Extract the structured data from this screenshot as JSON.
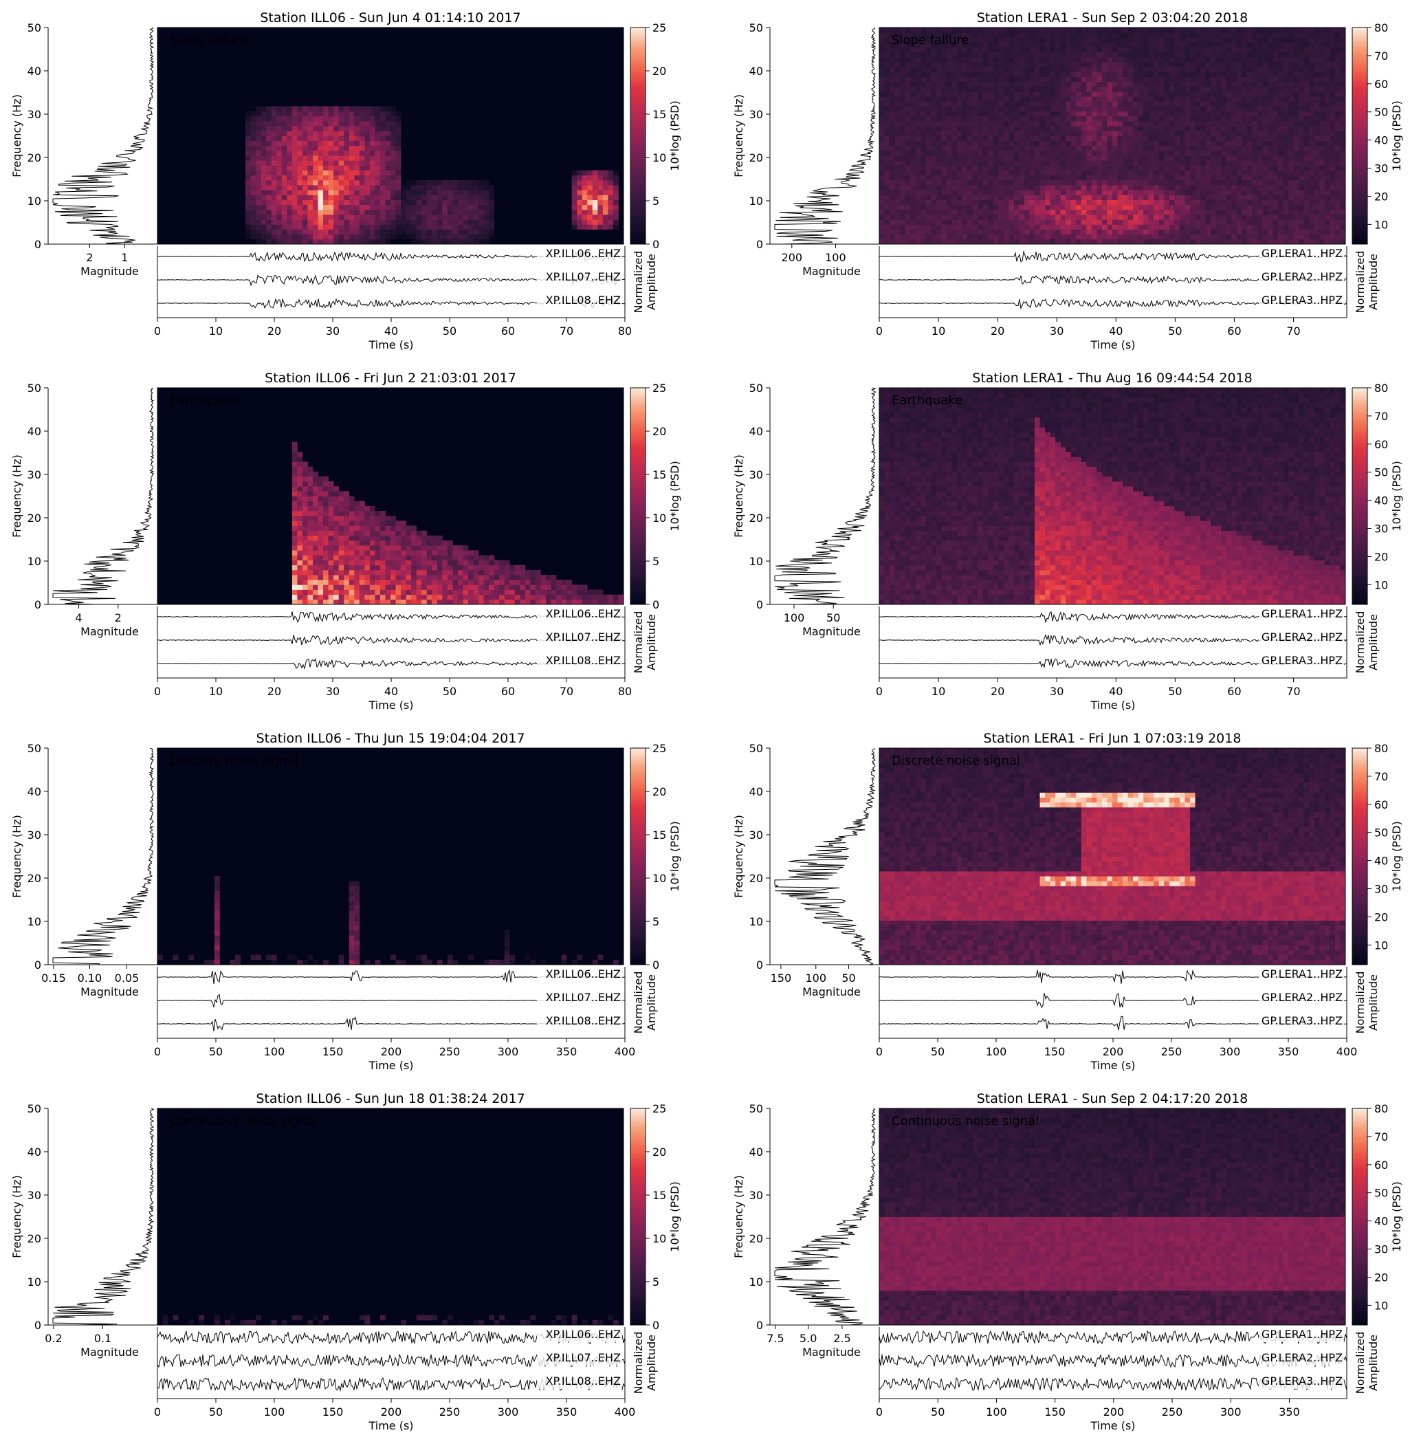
{
  "figure": {
    "panels": [
      {
        "title": "Station ILL06 - Sun Jun  4 01:14:10 2017",
        "label": "Slope failure",
        "yLabel": "Frequency (Hz)",
        "magLabel": "Magnitude",
        "xLabel": "Time (s)",
        "cbLabel": "10*log (PSD)",
        "ampLabel": [
          "Normalized",
          "Amplitude"
        ],
        "yTicks": [
          0,
          10,
          20,
          30,
          40,
          50
        ],
        "yMax": 50,
        "xMax": 80,
        "xTicks": [
          0,
          10,
          20,
          30,
          40,
          50,
          60,
          70,
          80
        ],
        "cbMin": 0,
        "cbMax": 25,
        "cbTicks": [
          0,
          5,
          10,
          15,
          20,
          25
        ],
        "magTicks": [
          {
            "v": "2",
            "f": 0.38
          },
          {
            "v": "1",
            "f": 0.7
          }
        ],
        "traces": [
          "XP.ILL06..EHZ",
          "XP.ILL07..EHZ",
          "XP.ILL08..EHZ"
        ],
        "blobs": [
          {
            "t0": 15,
            "t1": 42,
            "f0": 0,
            "f1": 32,
            "i": 0.75
          },
          {
            "t0": 25,
            "t1": 32,
            "f0": 0,
            "f1": 22,
            "i": 1.0
          },
          {
            "t0": 42,
            "t1": 58,
            "f0": 0,
            "f1": 15,
            "i": 0.35
          },
          {
            "t0": 71,
            "t1": 79,
            "f0": 3,
            "f1": 17,
            "i": 0.95
          }
        ],
        "onset": 16,
        "chart_data": {
          "type": "heatmap",
          "xlabel": "Time (s)",
          "ylabel": "Frequency (Hz)",
          "xlim": [
            0,
            80
          ],
          "ylim": [
            0,
            50
          ],
          "colorbar_range": [
            0,
            25
          ],
          "annotation": "Slope failure",
          "strong_energy_regions": [
            {
              "time_s": [
                15,
                42
              ],
              "freq_hz": [
                0,
                32
              ]
            },
            {
              "time_s": [
                71,
                79
              ],
              "freq_hz": [
                3,
                17
              ]
            }
          ],
          "spectrum_peak": {
            "freq_hz": 10,
            "magnitude": 2.6
          }
        }
      },
      {
        "title": "Station LERA1 - Sun Sep  2 03:04:20 2018",
        "label": "Slope failure",
        "yLabel": "Frequency (Hz)",
        "magLabel": "Magnitude",
        "xLabel": "Time (s)",
        "cbLabel": "10*log (PSD)",
        "ampLabel": [
          "Normalized",
          "Amplitude"
        ],
        "yTicks": [
          0,
          10,
          20,
          30,
          40,
          50
        ],
        "yMax": 50,
        "xMax": 79,
        "xTicks": [
          0,
          10,
          20,
          30,
          40,
          50,
          60,
          70
        ],
        "cbMin": 3,
        "cbMax": 80,
        "cbTicks": [
          10,
          20,
          30,
          40,
          50,
          60,
          70,
          80
        ],
        "magTicks": [
          {
            "v": "200",
            "f": 0.2
          },
          {
            "v": "100",
            "f": 0.6
          }
        ],
        "traces": [
          "GP.LERA1..HPZ",
          "GP.LERA2..HPZ",
          "GP.LERA3..HPZ"
        ],
        "background": 0.4,
        "blobs": [
          {
            "t0": 20,
            "t1": 55,
            "f0": 0,
            "f1": 15,
            "i": 0.7
          },
          {
            "t0": 30,
            "t1": 45,
            "f0": 15,
            "f1": 45,
            "i": 0.45
          },
          {
            "t0": 0,
            "t1": 79,
            "f0": 10,
            "f1": 25,
            "i": 0.25
          }
        ],
        "onset": 23,
        "chart_data": {
          "type": "heatmap",
          "xlabel": "Time (s)",
          "ylabel": "Frequency (Hz)",
          "xlim": [
            0,
            79
          ],
          "ylim": [
            0,
            50
          ],
          "colorbar_range": [
            3,
            80
          ],
          "annotation": "Slope failure",
          "strong_energy_regions": [
            {
              "time_s": [
                20,
                55
              ],
              "freq_hz": [
                0,
                15
              ]
            }
          ],
          "spectrum_peak": {
            "freq_hz": 4,
            "magnitude": 230
          }
        }
      },
      {
        "title": "Station ILL06 - Fri Jun  2 21:03:01 2017",
        "label": "Earthquake",
        "yLabel": "Frequency (Hz)",
        "magLabel": "Magnitude",
        "xLabel": "Time (s)",
        "cbLabel": "10*log (PSD)",
        "ampLabel": [
          "Normalized",
          "Amplitude"
        ],
        "yTicks": [
          0,
          10,
          20,
          30,
          40,
          50
        ],
        "yMax": 50,
        "xMax": 80,
        "xTicks": [
          0,
          10,
          20,
          30,
          40,
          50,
          60,
          70,
          80
        ],
        "cbMin": 0,
        "cbMax": 25,
        "cbTicks": [
          0,
          5,
          10,
          15,
          20,
          25
        ],
        "magTicks": [
          {
            "v": "4",
            "f": 0.28
          },
          {
            "v": "2",
            "f": 0.64
          }
        ],
        "traces": [
          "XP.ILL06..EHZ",
          "XP.ILL07..EHZ",
          "XP.ILL08..EHZ"
        ],
        "wedge": {
          "t0": 23,
          "t1": 79,
          "fTop": 40,
          "fEnd": 2
        },
        "onset": 23,
        "chart_data": {
          "type": "heatmap",
          "xlabel": "Time (s)",
          "ylabel": "Frequency (Hz)",
          "xlim": [
            0,
            80
          ],
          "ylim": [
            0,
            50
          ],
          "colorbar_range": [
            0,
            25
          ],
          "annotation": "Earthquake",
          "onset_time_s": 23,
          "strong_energy_regions": [
            {
              "time_s": [
                23,
                35
              ],
              "freq_hz": [
                0,
                40
              ]
            }
          ],
          "spectrum_peak": {
            "freq_hz": 2,
            "magnitude": 4.7
          }
        }
      },
      {
        "title": "Station LERA1 - Thu Aug 16 09:44:54 2018",
        "label": "Earthquake",
        "yLabel": "Frequency (Hz)",
        "magLabel": "Magnitude",
        "xLabel": "Time (s)",
        "cbLabel": "10*log (PSD)",
        "ampLabel": [
          "Normalized",
          "Amplitude"
        ],
        "yTicks": [
          0,
          10,
          20,
          30,
          40,
          50
        ],
        "yMax": 50,
        "xMax": 79,
        "xTicks": [
          0,
          10,
          20,
          30,
          40,
          50,
          60,
          70
        ],
        "cbMin": 3,
        "cbMax": 80,
        "cbTicks": [
          10,
          20,
          30,
          40,
          50,
          60,
          70,
          80
        ],
        "magTicks": [
          {
            "v": "100",
            "f": 0.22
          },
          {
            "v": "50",
            "f": 0.58
          }
        ],
        "traces": [
          "GP.LERA1..HPZ",
          "GP.LERA2..HPZ",
          "GP.LERA3..HPZ"
        ],
        "background": 0.4,
        "wedgeSoft": {
          "t0": 26.5,
          "t1": 79,
          "fTop": 45,
          "fEnd": 8
        },
        "onset": 27,
        "chart_data": {
          "type": "heatmap",
          "xlabel": "Time (s)",
          "ylabel": "Frequency (Hz)",
          "xlim": [
            0,
            79
          ],
          "ylim": [
            0,
            50
          ],
          "colorbar_range": [
            3,
            80
          ],
          "annotation": "Earthquake",
          "onset_time_s": 26.5,
          "strong_energy_regions": [
            {
              "time_s": [
                26.5,
                45
              ],
              "freq_hz": [
                0,
                30
              ]
            }
          ],
          "spectrum_peak": {
            "freq_hz": 6,
            "magnitude": 130
          }
        }
      },
      {
        "title": "Station ILL06 - Thu Jun 15 19:04:04 2017",
        "label": "Discrete noise signal",
        "yLabel": "Frequency (Hz)",
        "magLabel": "Magnitude",
        "xLabel": "Time (s)",
        "cbLabel": "10*log (PSD)",
        "ampLabel": [
          "Normalized",
          "Amplitude"
        ],
        "yTicks": [
          0,
          10,
          20,
          30,
          40,
          50
        ],
        "yMax": 50,
        "xMax": 400,
        "xTicks": [
          0,
          50,
          100,
          150,
          200,
          250,
          300,
          350,
          400
        ],
        "cbMin": 0,
        "cbMax": 25,
        "cbTicks": [
          0,
          5,
          10,
          15,
          20,
          25
        ],
        "magTicks": [
          {
            "v": "0.15",
            "f": 0.05
          },
          {
            "v": "0.10",
            "f": 0.38
          },
          {
            "v": "0.05",
            "f": 0.72
          }
        ],
        "traces": [
          "XP.ILL06..EHZ",
          "XP.ILL07..EHZ",
          "XP.ILL08..EHZ"
        ],
        "spikes": [
          {
            "t": 51,
            "f1": 21,
            "i": 0.7
          },
          {
            "t": 170,
            "f1": 19,
            "i": 0.6
          },
          {
            "t": 300,
            "f1": 8,
            "i": 0.25
          }
        ],
        "floorNoise": true,
        "burstTimes": [
          [
            51,
            170,
            300
          ],
          [
            51
          ],
          [
            51,
            165
          ]
        ],
        "chart_data": {
          "type": "heatmap",
          "xlabel": "Time (s)",
          "ylabel": "Frequency (Hz)",
          "xlim": [
            0,
            400
          ],
          "ylim": [
            0,
            50
          ],
          "colorbar_range": [
            0,
            25
          ],
          "annotation": "Discrete noise signal",
          "impulsive_events_s": [
            51,
            170,
            300
          ],
          "spectrum_peak": {
            "freq_hz": 1,
            "magnitude": 0.16
          }
        }
      },
      {
        "title": "Station LERA1 - Fri Jun  1 07:03:19 2018",
        "label": "Discrete noise signal",
        "yLabel": "Frequency (Hz)",
        "magLabel": "Magnitude",
        "xLabel": "Time (s)",
        "cbLabel": "10*log (PSD)",
        "ampLabel": [
          "Normalized",
          "Amplitude"
        ],
        "yTicks": [
          0,
          10,
          20,
          30,
          40,
          50
        ],
        "yMax": 50,
        "xMax": 400,
        "xTicks": [
          0,
          50,
          100,
          150,
          200,
          250,
          300,
          350,
          400
        ],
        "cbMin": 3,
        "cbMax": 80,
        "cbTicks": [
          10,
          20,
          30,
          40,
          50,
          60,
          70,
          80
        ],
        "magTicks": [
          {
            "v": "150",
            "f": 0.1
          },
          {
            "v": "100",
            "f": 0.42
          },
          {
            "v": "50",
            "f": 0.72
          }
        ],
        "traces": [
          "GP.LERA1..HPZ",
          "GP.LERA2..HPZ",
          "GP.LERA3..HPZ"
        ],
        "background": 0.45,
        "bands": [
          {
            "t0": 0,
            "t1": 400,
            "f0": 10,
            "f1": 22,
            "i": 0.3
          },
          {
            "t0": 140,
            "t1": 270,
            "f0": 18,
            "f1": 21,
            "i": 0.7
          },
          {
            "t0": 140,
            "t1": 270,
            "f0": 36,
            "f1": 40,
            "i": 0.75
          },
          {
            "t0": 175,
            "t1": 265,
            "f0": 20,
            "f1": 38,
            "i": 0.35
          }
        ],
        "burstTimes": [
          [
            140,
            205,
            265
          ],
          [
            140,
            205,
            265
          ],
          [
            140,
            205,
            265
          ]
        ],
        "chart_data": {
          "type": "heatmap",
          "xlabel": "Time (s)",
          "ylabel": "Frequency (Hz)",
          "xlim": [
            0,
            400
          ],
          "ylim": [
            0,
            50
          ],
          "colorbar_range": [
            3,
            80
          ],
          "annotation": "Discrete noise signal",
          "tonal_lines_hz": [
            19.5,
            38
          ],
          "active_interval_s": [
            140,
            270
          ],
          "spectrum_peak": {
            "freq_hz": 19,
            "magnitude": 160
          }
        }
      },
      {
        "title": "Station ILL06 - Sun Jun 18 01:38:24 2017",
        "label": "Continuous noise signal",
        "yLabel": "Frequency (Hz)",
        "magLabel": "Magnitude",
        "xLabel": "Time (s)",
        "cbLabel": "10*log (PSD)",
        "ampLabel": [
          "Normalized",
          "Amplitude"
        ],
        "yTicks": [
          0,
          10,
          20,
          30,
          40,
          50
        ],
        "yMax": 50,
        "xMax": 400,
        "xTicks": [
          0,
          50,
          100,
          150,
          200,
          250,
          300,
          350,
          400
        ],
        "cbMin": 0,
        "cbMax": 25,
        "cbTicks": [
          0,
          5,
          10,
          15,
          20,
          25
        ],
        "magTicks": [
          {
            "v": "0.2",
            "f": 0.05
          },
          {
            "v": "0.1",
            "f": 0.5
          }
        ],
        "traces": [
          "XP.ILL06..EHZ",
          "XP.ILL07..EHZ",
          "XP.ILL08..EHZ"
        ],
        "floorNoise": true,
        "continuous": true,
        "chart_data": {
          "type": "heatmap",
          "xlabel": "Time (s)",
          "ylabel": "Frequency (Hz)",
          "xlim": [
            0,
            400
          ],
          "ylim": [
            0,
            50
          ],
          "colorbar_range": [
            0,
            25
          ],
          "annotation": "Continuous noise signal",
          "spectrum_peak": {
            "freq_hz": 1,
            "magnitude": 0.2
          }
        }
      },
      {
        "title": "Station LERA1 - Sun Sep  2 04:17:20 2018",
        "label": "Continuous noise signal",
        "yLabel": "Frequency (Hz)",
        "magLabel": "Magnitude",
        "xLabel": "Time (s)",
        "cbLabel": "10*log (PSD)",
        "ampLabel": [
          "Normalized",
          "Amplitude"
        ],
        "yTicks": [
          0,
          10,
          20,
          30,
          40,
          50
        ],
        "yMax": 50,
        "xMax": 399,
        "xTicks": [
          0,
          50,
          100,
          150,
          200,
          250,
          300,
          350
        ],
        "cbMin": 3,
        "cbMax": 80,
        "cbTicks": [
          10,
          20,
          30,
          40,
          50,
          60,
          70,
          80
        ],
        "magTicks": [
          {
            "v": "7.5",
            "f": 0.05
          },
          {
            "v": "5.0",
            "f": 0.35
          },
          {
            "v": "2.5",
            "f": 0.66
          }
        ],
        "traces": [
          "GP.LERA1..HPZ",
          "GP.LERA2..HPZ",
          "GP.LERA3..HPZ"
        ],
        "background": 0.38,
        "bands": [
          {
            "t0": 0,
            "t1": 399,
            "f0": 8,
            "f1": 25,
            "i": 0.25
          }
        ],
        "continuous": true,
        "chart_data": {
          "type": "heatmap",
          "xlabel": "Time (s)",
          "ylabel": "Frequency (Hz)",
          "xlim": [
            0,
            399
          ],
          "ylim": [
            0,
            50
          ],
          "colorbar_range": [
            3,
            80
          ],
          "annotation": "Continuous noise signal",
          "energy_band_hz": [
            8,
            25
          ],
          "spectrum_peak": {
            "freq_hz": 12,
            "magnitude": 7.8
          }
        }
      }
    ]
  }
}
